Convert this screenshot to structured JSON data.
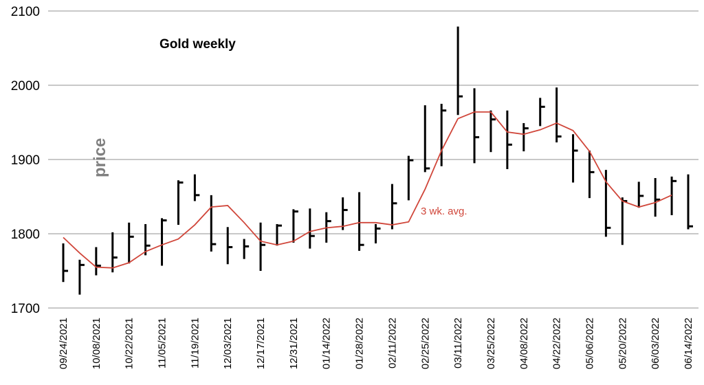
{
  "chart_data": {
    "type": "ohlc",
    "title": "Gold weekly",
    "ylabel": "price",
    "ylim": [
      1700,
      2100
    ],
    "yticks": [
      1700,
      1800,
      1900,
      2000,
      2100
    ],
    "grid": true,
    "x_tick_labels": [
      "09/24/2021",
      "10/08/2021",
      "10/22/2021",
      "11/05/2021",
      "11/19/2021",
      "12/03/2021",
      "12/17/2021",
      "12/31/2021",
      "01/14/2022",
      "01/28/2022",
      "02/11/2022",
      "02/25/2022",
      "03/11/2022",
      "03/25/2022",
      "04/08/2022",
      "04/22/2022",
      "05/06/2022",
      "05/20/2022",
      "06/03/2022",
      "06/14/2022"
    ],
    "bars": [
      {
        "high": 1787,
        "low": 1735,
        "close": 1750
      },
      {
        "high": 1765,
        "low": 1718,
        "close": 1758
      },
      {
        "high": 1782,
        "low": 1744,
        "close": 1757
      },
      {
        "high": 1802,
        "low": 1748,
        "close": 1768
      },
      {
        "high": 1815,
        "low": 1760,
        "close": 1796
      },
      {
        "high": 1813,
        "low": 1771,
        "close": 1784
      },
      {
        "high": 1821,
        "low": 1757,
        "close": 1818
      },
      {
        "high": 1872,
        "low": 1812,
        "close": 1869
      },
      {
        "high": 1880,
        "low": 1844,
        "close": 1852
      },
      {
        "high": 1852,
        "low": 1776,
        "close": 1786
      },
      {
        "high": 1809,
        "low": 1759,
        "close": 1782
      },
      {
        "high": 1793,
        "low": 1766,
        "close": 1783
      },
      {
        "high": 1815,
        "low": 1750,
        "close": 1785
      },
      {
        "high": 1813,
        "low": 1784,
        "close": 1811
      },
      {
        "high": 1833,
        "low": 1788,
        "close": 1830
      },
      {
        "high": 1834,
        "low": 1780,
        "close": 1797
      },
      {
        "high": 1829,
        "low": 1788,
        "close": 1817
      },
      {
        "high": 1849,
        "low": 1805,
        "close": 1832
      },
      {
        "high": 1856,
        "low": 1777,
        "close": 1785
      },
      {
        "high": 1813,
        "low": 1787,
        "close": 1807
      },
      {
        "high": 1867,
        "low": 1806,
        "close": 1841
      },
      {
        "high": 1905,
        "low": 1845,
        "close": 1899
      },
      {
        "high": 1973,
        "low": 1883,
        "close": 1888
      },
      {
        "high": 1975,
        "low": 1891,
        "close": 1966
      },
      {
        "high": 2079,
        "low": 1960,
        "close": 1985
      },
      {
        "high": 1996,
        "low": 1895,
        "close": 1930
      },
      {
        "high": 1966,
        "low": 1910,
        "close": 1954
      },
      {
        "high": 1966,
        "low": 1887,
        "close": 1920
      },
      {
        "high": 1949,
        "low": 1911,
        "close": 1942
      },
      {
        "high": 1983,
        "low": 1945,
        "close": 1971
      },
      {
        "high": 1997,
        "low": 1923,
        "close": 1931
      },
      {
        "high": 1934,
        "low": 1869,
        "close": 1912
      },
      {
        "high": 1912,
        "low": 1848,
        "close": 1883
      },
      {
        "high": 1886,
        "low": 1796,
        "close": 1808
      },
      {
        "high": 1849,
        "low": 1785,
        "close": 1844
      },
      {
        "high": 1870,
        "low": 1835,
        "close": 1851
      },
      {
        "high": 1875,
        "low": 1823,
        "close": 1846
      },
      {
        "high": 1877,
        "low": 1825,
        "close": 1871
      },
      {
        "high": 1880,
        "low": 1806,
        "close": 1810
      }
    ],
    "moving_average": {
      "name": "3 wk. avg.",
      "color": "#d0463a",
      "values": [
        1795,
        1774,
        1755,
        1754,
        1761,
        1776,
        1785,
        1793,
        1812,
        1836,
        1838,
        1815,
        1790,
        1785,
        1790,
        1803,
        1808,
        1810,
        1815,
        1815,
        1812,
        1816,
        1860,
        1912,
        1955,
        1964,
        1964,
        1937,
        1934,
        1940,
        1949,
        1939,
        1911,
        1870,
        1844,
        1836,
        1842,
        1852
      ]
    },
    "annotation": "3 wk. avg.",
    "colors": {
      "bars": "#000000",
      "grid": "#a6a6a6",
      "average": "#d0463a",
      "ylabel": "#7f7f7f"
    }
  }
}
